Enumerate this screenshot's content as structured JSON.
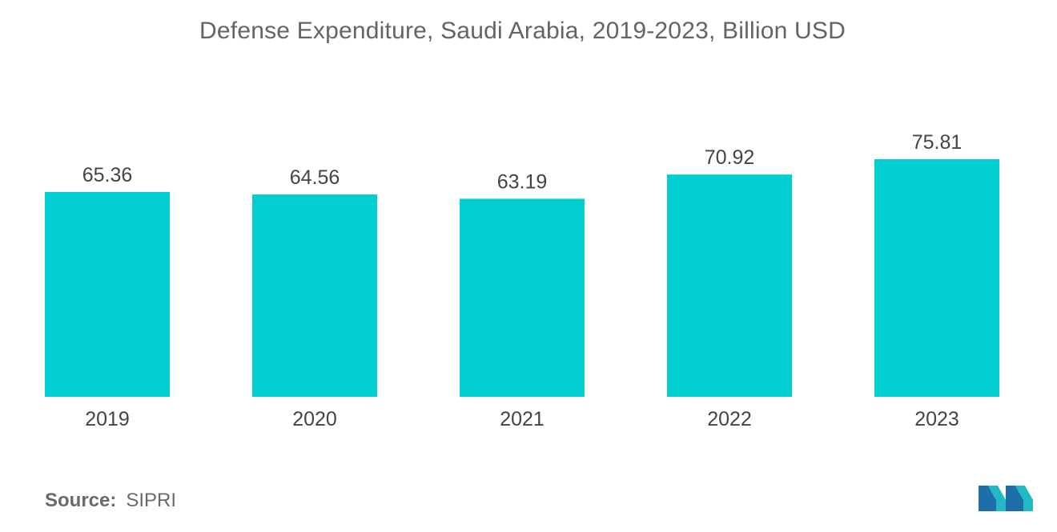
{
  "chart_data": {
    "type": "bar",
    "title": "Defense Expenditure, Saudi Arabia, 2019-2023, Billion USD",
    "categories": [
      "2019",
      "2020",
      "2021",
      "2022",
      "2023"
    ],
    "values": [
      65.36,
      64.56,
      63.19,
      70.92,
      75.81
    ],
    "value_labels": [
      "65.36",
      "64.56",
      "63.19",
      "70.92",
      "75.81"
    ],
    "xlabel": "",
    "ylabel": "",
    "ylim": [
      0,
      75.81
    ],
    "grid": false,
    "legend": "none",
    "bar_color": "#00CED1"
  },
  "source": {
    "label": "Source:",
    "value": "SIPRI"
  },
  "logo": {
    "icon": "mordor-intelligence-logo-icon",
    "colors": [
      "#1E6FA8",
      "#22B8C6"
    ]
  }
}
